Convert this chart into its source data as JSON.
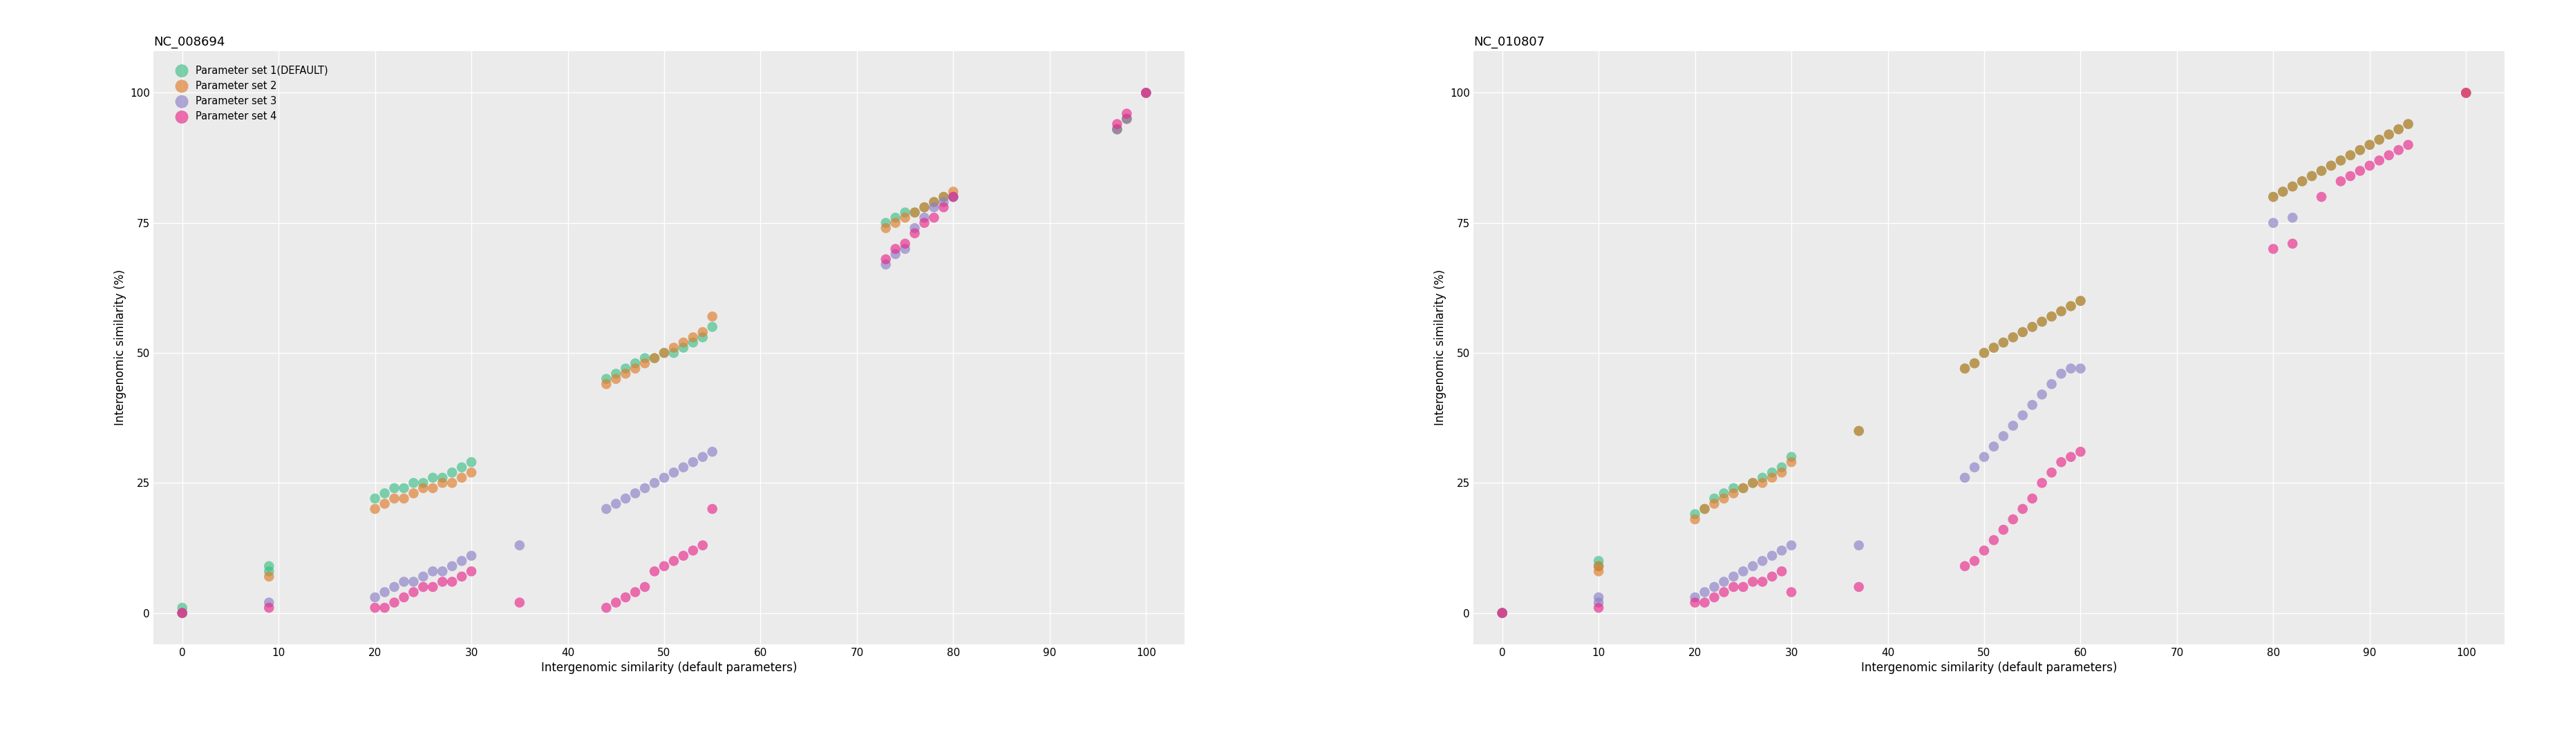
{
  "panel1_title": "NC_008694",
  "panel2_title": "NC_010807",
  "xlabel": "Intergenomic similarity (default parameters)",
  "ylabel": "Intergenomic similarity (%)",
  "legend_labels": [
    "Parameter set 1(DEFAULT)",
    "Parameter set 2",
    "Parameter set 3",
    "Parameter set 4"
  ],
  "colors": [
    "#3dbf88",
    "#e07b2a",
    "#8b7fc7",
    "#e8288a"
  ],
  "alpha": 0.65,
  "marker_size": 110,
  "bg_color": "#ebebeb",
  "grid_color": "#ffffff",
  "panel1": {
    "set1": {
      "x": [
        0,
        0,
        9,
        9,
        20,
        21,
        22,
        23,
        24,
        25,
        26,
        27,
        28,
        29,
        30,
        44,
        45,
        46,
        47,
        48,
        49,
        50,
        51,
        52,
        53,
        54,
        55,
        73,
        74,
        75,
        76,
        77,
        78,
        79,
        80,
        97,
        98,
        100
      ],
      "y": [
        0,
        1,
        8,
        9,
        22,
        23,
        24,
        24,
        25,
        25,
        26,
        26,
        27,
        28,
        29,
        45,
        46,
        47,
        48,
        49,
        49,
        50,
        50,
        51,
        52,
        53,
        55,
        75,
        76,
        77,
        77,
        78,
        79,
        80,
        80,
        93,
        95,
        100
      ]
    },
    "set2": {
      "x": [
        0,
        9,
        20,
        21,
        22,
        23,
        24,
        25,
        26,
        27,
        28,
        29,
        30,
        44,
        45,
        46,
        47,
        48,
        49,
        50,
        51,
        52,
        53,
        54,
        55,
        73,
        74,
        75,
        76,
        77,
        78,
        79,
        80,
        97,
        98,
        100
      ],
      "y": [
        0,
        7,
        20,
        21,
        22,
        22,
        23,
        24,
        24,
        25,
        25,
        26,
        27,
        44,
        45,
        46,
        47,
        48,
        49,
        50,
        51,
        52,
        53,
        54,
        57,
        74,
        75,
        76,
        77,
        78,
        79,
        80,
        81,
        93,
        95,
        100
      ]
    },
    "set3": {
      "x": [
        0,
        9,
        20,
        21,
        22,
        23,
        24,
        25,
        26,
        27,
        28,
        29,
        30,
        35,
        44,
        45,
        46,
        47,
        48,
        49,
        50,
        51,
        52,
        53,
        54,
        55,
        73,
        74,
        75,
        76,
        77,
        78,
        79,
        80,
        97,
        98,
        100
      ],
      "y": [
        0,
        2,
        3,
        4,
        5,
        6,
        6,
        7,
        8,
        8,
        9,
        10,
        11,
        13,
        20,
        21,
        22,
        23,
        24,
        25,
        26,
        27,
        28,
        29,
        30,
        31,
        67,
        69,
        70,
        74,
        76,
        78,
        79,
        80,
        93,
        95,
        100
      ]
    },
    "set4": {
      "x": [
        0,
        9,
        20,
        21,
        22,
        23,
        24,
        25,
        26,
        27,
        28,
        29,
        30,
        35,
        44,
        45,
        46,
        47,
        48,
        49,
        50,
        51,
        52,
        53,
        54,
        55,
        73,
        74,
        75,
        76,
        77,
        78,
        79,
        80,
        97,
        98,
        100
      ],
      "y": [
        0,
        1,
        1,
        1,
        2,
        3,
        4,
        5,
        5,
        6,
        6,
        7,
        8,
        2,
        1,
        2,
        3,
        4,
        5,
        8,
        9,
        10,
        11,
        12,
        13,
        20,
        68,
        70,
        71,
        73,
        75,
        76,
        78,
        80,
        94,
        96,
        100
      ]
    }
  },
  "panel2": {
    "set1": {
      "x": [
        0,
        10,
        10,
        20,
        21,
        22,
        23,
        24,
        25,
        26,
        27,
        28,
        29,
        30,
        37,
        48,
        49,
        50,
        51,
        52,
        53,
        54,
        55,
        56,
        57,
        58,
        59,
        60,
        80,
        81,
        82,
        83,
        84,
        85,
        86,
        87,
        88,
        89,
        90,
        91,
        92,
        93,
        94,
        100
      ],
      "y": [
        0,
        9,
        10,
        19,
        20,
        22,
        23,
        24,
        24,
        25,
        26,
        27,
        28,
        30,
        35,
        47,
        48,
        50,
        51,
        52,
        53,
        54,
        55,
        56,
        57,
        58,
        59,
        60,
        80,
        81,
        82,
        83,
        84,
        85,
        86,
        87,
        88,
        89,
        90,
        91,
        92,
        93,
        94,
        100
      ]
    },
    "set2": {
      "x": [
        0,
        10,
        10,
        20,
        21,
        22,
        23,
        24,
        25,
        26,
        27,
        28,
        29,
        30,
        37,
        48,
        49,
        50,
        51,
        52,
        53,
        54,
        55,
        56,
        57,
        58,
        59,
        60,
        80,
        81,
        82,
        83,
        84,
        85,
        86,
        87,
        88,
        89,
        90,
        91,
        92,
        93,
        94,
        100
      ],
      "y": [
        0,
        8,
        9,
        18,
        20,
        21,
        22,
        23,
        24,
        25,
        25,
        26,
        27,
        29,
        35,
        47,
        48,
        50,
        51,
        52,
        53,
        54,
        55,
        56,
        57,
        58,
        59,
        60,
        80,
        81,
        82,
        83,
        84,
        85,
        86,
        87,
        88,
        89,
        90,
        91,
        92,
        93,
        94,
        100
      ]
    },
    "set3": {
      "x": [
        0,
        10,
        10,
        20,
        21,
        22,
        23,
        24,
        25,
        26,
        27,
        28,
        29,
        30,
        37,
        48,
        49,
        50,
        51,
        52,
        53,
        54,
        55,
        56,
        57,
        58,
        59,
        60,
        80,
        82
      ],
      "y": [
        0,
        2,
        3,
        3,
        4,
        5,
        6,
        7,
        8,
        9,
        10,
        11,
        12,
        13,
        13,
        26,
        28,
        30,
        32,
        34,
        36,
        38,
        40,
        42,
        44,
        46,
        47,
        47,
        75,
        76
      ]
    },
    "set4": {
      "x": [
        0,
        10,
        20,
        21,
        22,
        23,
        24,
        25,
        26,
        27,
        28,
        29,
        30,
        37,
        48,
        49,
        50,
        51,
        52,
        53,
        54,
        55,
        56,
        57,
        58,
        59,
        60,
        80,
        82,
        85,
        87,
        88,
        89,
        90,
        91,
        92,
        93,
        94,
        100
      ],
      "y": [
        0,
        1,
        2,
        2,
        3,
        4,
        5,
        5,
        6,
        6,
        7,
        8,
        4,
        5,
        9,
        10,
        12,
        14,
        16,
        18,
        20,
        22,
        25,
        27,
        29,
        30,
        31,
        70,
        71,
        80,
        83,
        84,
        85,
        86,
        87,
        88,
        89,
        90,
        100
      ]
    }
  },
  "xlim": [
    -3,
    104
  ],
  "ylim": [
    -6,
    108
  ],
  "xticks": [
    0,
    10,
    20,
    30,
    40,
    50,
    60,
    70,
    80,
    90,
    100
  ],
  "yticks": [
    0,
    25,
    50,
    75,
    100
  ],
  "tick_fontsize": 11,
  "label_fontsize": 12,
  "title_fontsize": 13
}
